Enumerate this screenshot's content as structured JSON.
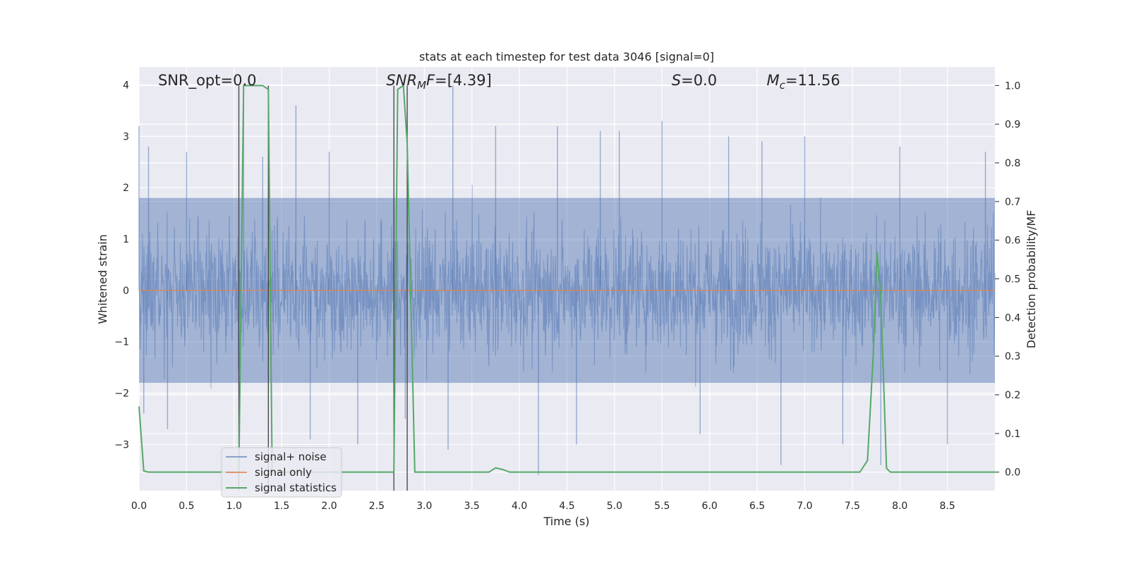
{
  "chart_data": {
    "type": "line",
    "title": "stats at each timestep for test data 3046 [signal=0]",
    "xlabel": "Time (s)",
    "ylabel_left": "Whitened strain",
    "ylabel_right": "Detection probability/MF",
    "xlim": [
      0,
      9.0
    ],
    "ylim_left": [
      -3.9,
      4.35
    ],
    "ylim_right": [
      -0.048,
      1.048
    ],
    "x_ticks": [
      "0.0",
      "0.5",
      "1.0",
      "1.5",
      "2.0",
      "2.5",
      "3.0",
      "3.5",
      "4.0",
      "4.5",
      "5.0",
      "5.5",
      "6.0",
      "6.5",
      "7.0",
      "7.5",
      "8.0",
      "8.5"
    ],
    "y_left_ticks": [
      "−3",
      "−2",
      "−1",
      "0",
      "1",
      "2",
      "3",
      "4"
    ],
    "y_right_ticks": [
      "0.0",
      "0.1",
      "0.2",
      "0.3",
      "0.4",
      "0.5",
      "0.6",
      "0.7",
      "0.8",
      "0.9",
      "1.0"
    ],
    "grid": true,
    "legend_position": "bottom-left",
    "colors": {
      "background": "#eaeaf2",
      "grid": "#ffffff",
      "signal_noise": "#4c72b0",
      "signal_only": "#dd8452",
      "signal_statistics": "#55a868",
      "markers": "#404040"
    },
    "annotations": [
      {
        "text": "SNR_opt=0.0",
        "x": 0.2
      },
      {
        "text": "SNR_MF=[4.39]",
        "x": 2.6
      },
      {
        "text": "S=0.0",
        "x": 5.6
      },
      {
        "text": "M_c=11.56",
        "x": 6.6
      }
    ],
    "series": [
      {
        "name": "signal+ noise",
        "axis": "left",
        "description_envelope": {
          "typical_upper": 1.8,
          "typical_lower": -1.8,
          "max": 4.0,
          "min": -3.6
        },
        "sample_points": [
          [
            0.0,
            3.2
          ],
          [
            0.05,
            -2.4
          ],
          [
            0.1,
            2.8
          ],
          [
            0.3,
            -2.7
          ],
          [
            0.5,
            2.7
          ],
          [
            1.1,
            3.6
          ],
          [
            1.3,
            2.6
          ],
          [
            1.65,
            3.6
          ],
          [
            1.8,
            -2.9
          ],
          [
            2.0,
            2.7
          ],
          [
            2.3,
            -3.0
          ],
          [
            2.8,
            -2.5
          ],
          [
            3.3,
            4.0
          ],
          [
            3.25,
            -3.1
          ],
          [
            3.75,
            3.2
          ],
          [
            4.2,
            -3.6
          ],
          [
            4.4,
            3.2
          ],
          [
            4.6,
            -3.0
          ],
          [
            4.85,
            3.1
          ],
          [
            5.05,
            3.1
          ],
          [
            5.5,
            3.3
          ],
          [
            5.9,
            -2.8
          ],
          [
            6.2,
            3.0
          ],
          [
            6.55,
            2.9
          ],
          [
            6.75,
            -3.4
          ],
          [
            7.0,
            3.0
          ],
          [
            7.4,
            -3.0
          ],
          [
            7.8,
            -3.4
          ],
          [
            8.0,
            2.8
          ],
          [
            8.5,
            -3.0
          ],
          [
            8.9,
            2.7
          ]
        ]
      },
      {
        "name": "signal only",
        "axis": "left",
        "x": [
          0,
          9.0
        ],
        "y": [
          0,
          0
        ]
      },
      {
        "name": "signal statistics",
        "axis": "right",
        "x": [
          0.0,
          0.05,
          0.1,
          0.15,
          1.0,
          1.05,
          1.1,
          1.2,
          1.3,
          1.36,
          1.4,
          1.45,
          2.68,
          2.72,
          2.78,
          2.82,
          2.9,
          2.95,
          3.68,
          3.75,
          3.82,
          3.9,
          7.58,
          7.66,
          7.72,
          7.76,
          7.8,
          7.86,
          7.9,
          7.95,
          9.0
        ],
        "y": [
          0.17,
          0.003,
          0.0,
          0.0,
          0.0,
          0.0,
          1.0,
          1.0,
          1.0,
          0.99,
          0.0,
          0.0,
          0.0,
          0.99,
          1.0,
          0.85,
          0.0,
          0.0,
          0.0,
          0.011,
          0.007,
          0.0,
          0.0,
          0.03,
          0.3,
          0.57,
          0.45,
          0.01,
          0.0,
          0.0,
          0.0
        ]
      }
    ],
    "vertical_markers": [
      1.05,
      1.36,
      2.68,
      2.82
    ]
  },
  "legend": {
    "items": [
      "signal+ noise",
      "signal only",
      "signal statistics"
    ]
  }
}
